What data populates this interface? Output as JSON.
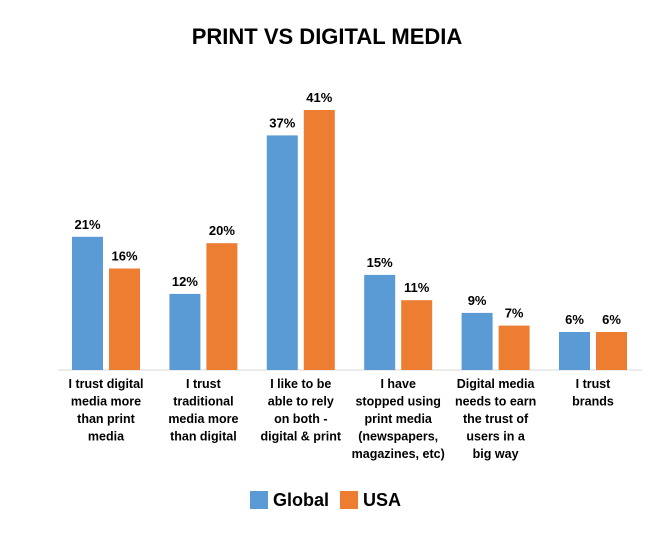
{
  "chart_data": {
    "type": "bar",
    "title": "PRINT VS DIGITAL MEDIA",
    "categories": [
      [
        "I trust digital",
        "media more",
        "than print",
        "media"
      ],
      [
        "I trust",
        "traditional",
        "media more",
        "than digital"
      ],
      [
        "I like to be",
        "able to rely",
        "on both -",
        "digital & print"
      ],
      [
        "I have",
        "stopped using",
        "print media",
        "(newspapers,",
        "magazines, etc)"
      ],
      [
        "Digital media",
        "needs to earn",
        "the trust of",
        "users in a",
        "big way"
      ],
      [
        "I trust",
        "brands"
      ]
    ],
    "series": [
      {
        "name": "Global",
        "color": "#5B9BD5",
        "values": [
          21,
          12,
          37,
          15,
          9,
          6
        ],
        "labels": [
          "21%",
          "12%",
          "37%",
          "15%",
          "9%",
          "6%"
        ]
      },
      {
        "name": "USA",
        "color": "#ED7D31",
        "values": [
          16,
          20,
          41,
          11,
          7,
          6
        ],
        "labels": [
          "16%",
          "20%",
          "41%",
          "11%",
          "7%",
          "6%"
        ]
      }
    ],
    "ylim": [
      0,
      41
    ],
    "xlabel": "",
    "ylabel": "",
    "legend_position": "bottom",
    "grid": false
  }
}
